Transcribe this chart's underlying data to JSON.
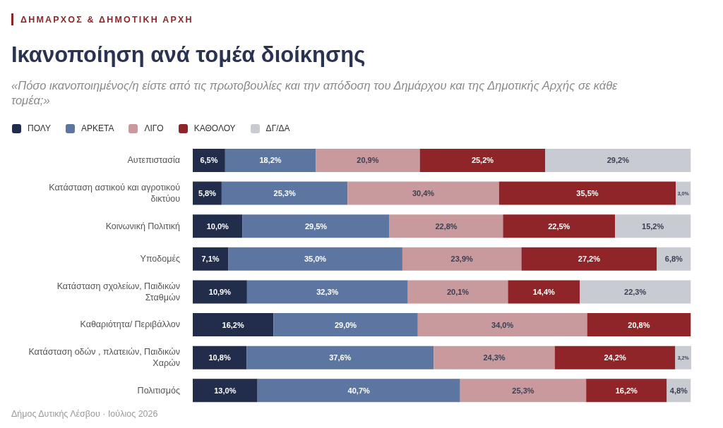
{
  "chart_data": {
    "type": "bar",
    "orientation": "horizontal",
    "stacked": true,
    "title": "Ικανοποίηση ανά τομέα διοίκησης",
    "subtitle": "«Πόσο ικανοποιημένος/η είστε από τις πρωτοβουλίες και την απόδοση του Δημάρχου και της Δημοτικής Αρχής σε κάθε τομέα;»",
    "annotations": [
      "ΔΗΜΑΡΧΟΣ & ΔΗΜΟΤΙΚΗ ΑΡΧΗ",
      "Δήμος Δυτικής Λέσβου · Ιούλιος 2026"
    ],
    "categories": [
      "Αυτεπιστασία",
      "Κατάσταση αστικού και αγροτικού δικτύου",
      "Κοινωνική Πολιτική",
      "Υποδομές",
      "Κατάσταση σχολείων, Παιδικών Σταθμών",
      "Καθαριότητα/ Περιβάλλον",
      "Κατάσταση οδών , πλατειών, Παιδικών Χαρών",
      "Πολιτισμός"
    ],
    "series": [
      {
        "name": "ΠΟΛΥ",
        "color": "#222d4b",
        "values": [
          6.5,
          5.8,
          10.0,
          7.1,
          10.9,
          16.2,
          10.8,
          13.0
        ],
        "value_labels": [
          "6,5%",
          "5,8%",
          "10,0%",
          "7,1%",
          "10,9%",
          "16,2%",
          "10,8%",
          "13,0%"
        ]
      },
      {
        "name": "ΑΡΚΕΤΑ",
        "color": "#5d76a1",
        "values": [
          18.2,
          25.3,
          29.5,
          35.0,
          32.3,
          29.0,
          37.6,
          40.7
        ],
        "value_labels": [
          "18,2%",
          "25,3%",
          "29,5%",
          "35,0%",
          "32,3%",
          "29,0%",
          "37,6%",
          "40,7%"
        ]
      },
      {
        "name": "ΛΙΓΟ",
        "color": "#c8999d",
        "values": [
          20.9,
          30.4,
          22.8,
          23.9,
          20.1,
          34.0,
          24.3,
          25.3
        ],
        "value_labels": [
          "20,9%",
          "30,4%",
          "22,8%",
          "23,9%",
          "20,1%",
          "34,0%",
          "24,3%",
          "25,3%"
        ]
      },
      {
        "name": "ΚΑΘΟΛΟΥ",
        "color": "#8f2528",
        "values": [
          25.2,
          35.5,
          22.5,
          27.2,
          14.4,
          20.8,
          24.2,
          16.2
        ],
        "value_labels": [
          "25,2%",
          "35,5%",
          "22,5%",
          "27,2%",
          "14,4%",
          "20,8%",
          "24,2%",
          "16,2%"
        ]
      },
      {
        "name": "ΔΓ/ΔΑ",
        "color": "#c8cbd1",
        "values": [
          29.2,
          3.0,
          15.2,
          6.8,
          22.3,
          null,
          3.2,
          4.8
        ],
        "value_labels": [
          "29,2%",
          "3,0%",
          "15,2%",
          "6,8%",
          "22,3%",
          null,
          "3,2%",
          "4,8%"
        ]
      }
    ],
    "legend": "top left",
    "tick_labels": "y"
  }
}
